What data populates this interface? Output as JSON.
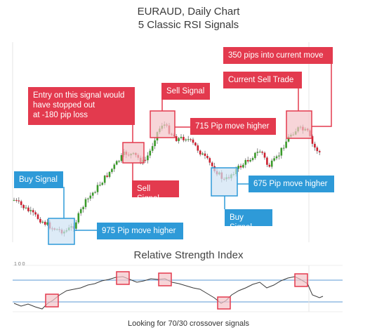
{
  "chart_data": [
    {
      "type": "candlestick",
      "title": "EURAUD, Daily Chart",
      "subtitle": "5 Classic RSI Signals",
      "annotations": [
        {
          "text": "Buy Signal",
          "color": "blue"
        },
        {
          "text": "975 Pip move higher",
          "color": "blue"
        },
        {
          "text": "Entry on this signal would have stopped out at -180 pip loss",
          "color": "red"
        },
        {
          "text": "Sell Signal",
          "color": "red"
        },
        {
          "text": "Sell Signal",
          "color": "red"
        },
        {
          "text": "715 Pip move higher",
          "color": "red"
        },
        {
          "text": "Buy Signal",
          "color": "blue"
        },
        {
          "text": "675 Pip move higher",
          "color": "blue"
        },
        {
          "text": "Current Sell Trade",
          "color": "red"
        },
        {
          "text": "350 pips into current move",
          "color": "red"
        }
      ]
    },
    {
      "type": "line",
      "title": "Relative Strength Index",
      "levels": [
        70,
        30
      ],
      "footer": "Looking for 70/30 crossover signals"
    }
  ],
  "labels": {
    "title": "EURAUD, Daily Chart",
    "subtitle": "5 Classic RSI Signals",
    "buy1": "Buy Signal",
    "move975": "975 Pip move higher",
    "entry_line1": "Entry on this signal would",
    "entry_line2": "have stopped out",
    "entry_line3": "at -180 pip loss",
    "sell1": "Sell Signal",
    "sell2": "Sell Signal",
    "move715": "715 Pip move higher",
    "buy2": "Buy Signal",
    "move675": "675 Pip move higher",
    "current": "Current Sell Trade",
    "pips350": "350 pips into current move",
    "rsi_title": "Relative Strength Index",
    "footer": "Looking for 70/30 crossover signals",
    "rsi_ticks": "1 0 0"
  },
  "colors": {
    "up": "#3a9a2a",
    "down": "#cc1f2f",
    "red": "#e33a4e",
    "blue": "#2e9ad8"
  }
}
